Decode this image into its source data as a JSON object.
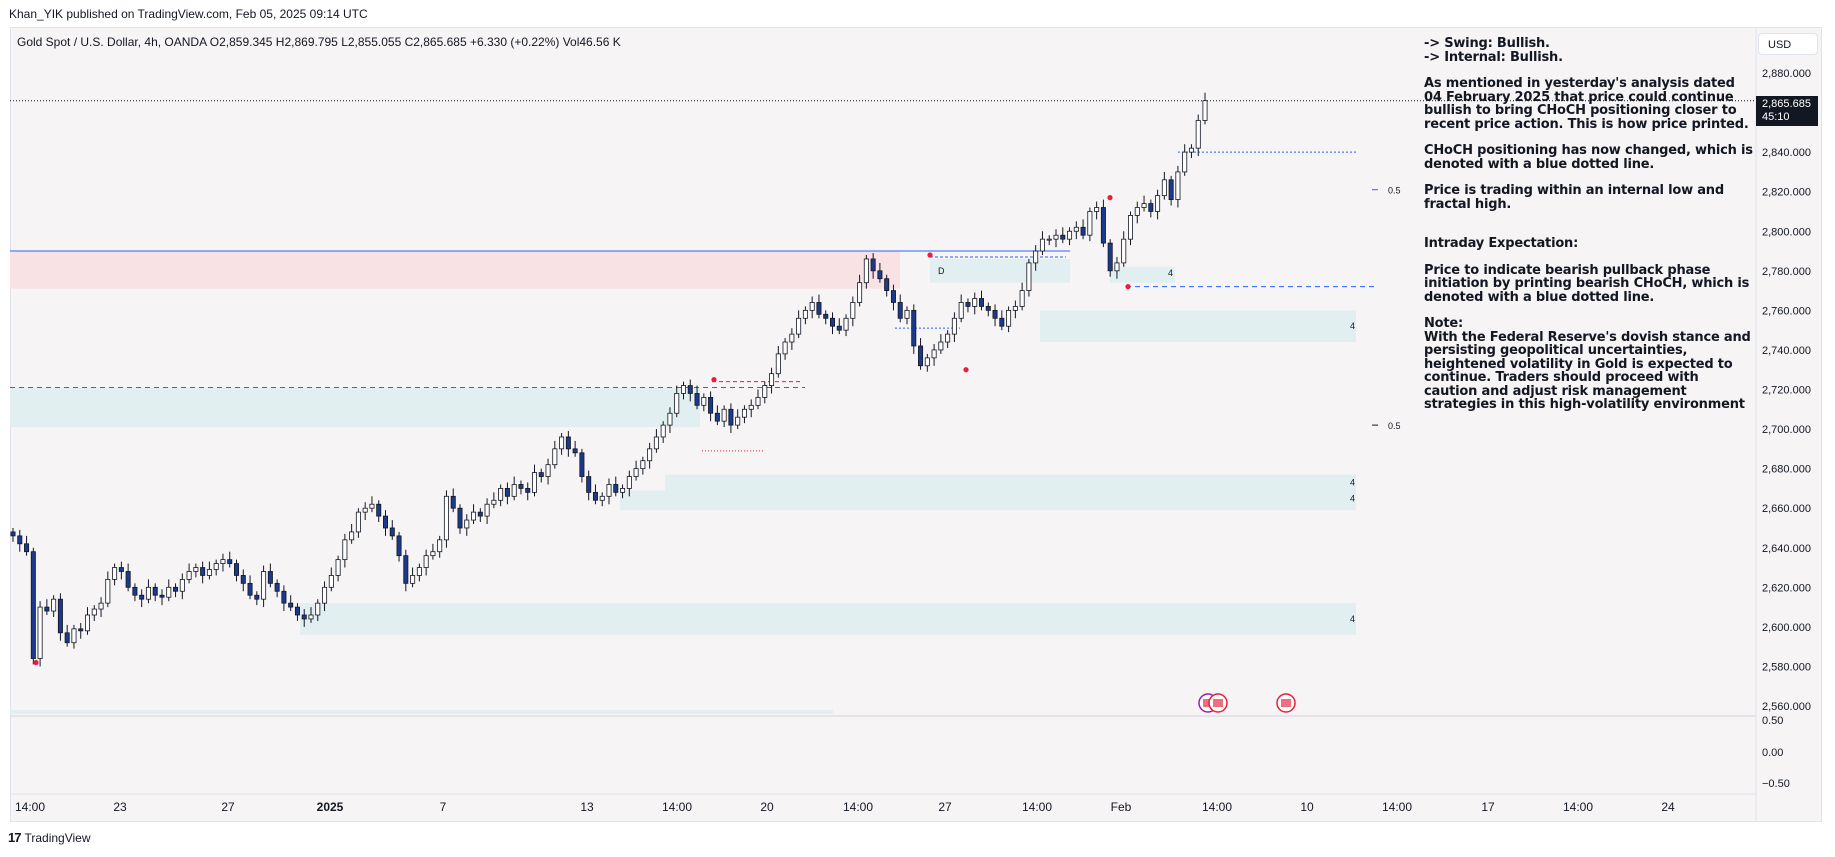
{
  "publisher_line": "Khan_YIK published on TradingView.com, Feb 05, 2025 09:14 UTC",
  "symbol_line": "Gold Spot / U.S. Dollar, 4h, OANDA  O2,859.345  H2,869.795  L2,855.055  C2,865.685  +6.330 (+0.22%)  Vol46.56 K",
  "currency_button": "USD",
  "last_price": "2,865.685",
  "countdown": "45:10",
  "footer_brand": "TradingView",
  "footer_logo": "17",
  "annotation": {
    "swing": "-> Swing:  Bullish.",
    "internal": "-> Internal:  Bullish.",
    "p1": "As mentioned in yesterday's analysis dated 04 February 2025 that price could continue bullish to bring CHoCH positioning closer to recent price action.  This is how price printed.",
    "p2": "CHoCH positioning has now changed, which is denoted with a blue dotted line.",
    "p3": "Price is trading within an internal low and fractal high.",
    "p4": "Intraday Expectation:",
    "p5": "Price to indicate bearish pullback phase initiation by printing bearish CHoCH, which is denoted with a blue dotted line.",
    "p6": "Note:",
    "p7": "With the Federal Reserve's dovish stance and persisting geopolitical uncertainties, heightened volatility in Gold is expected to continue. Traders should proceed with caution and adjust risk management strategies in this high-volatility environment"
  },
  "chart_labels": {
    "fib_upper": "0.5",
    "fib_lower": "0.5",
    "zone_label": "4",
    "d_label": "D"
  },
  "colors": {
    "bull_candle": "#ffffff",
    "bear_candle": "#1c3a8c",
    "wick": "#131722",
    "demand_zone": "#e1eff0",
    "supply_zone": "#f9e2e4",
    "choch_line": "#2962ff",
    "swing_point": "#e91e3c"
  },
  "chart_data": {
    "type": "candlestick",
    "title": "Gold Spot / U.S. Dollar, 4h, OANDA",
    "ylabel": "USD",
    "ylim": [
      2555,
      2890
    ],
    "yticks": [
      "2,880.000",
      "2,860.000",
      "2,840.000",
      "2,820.000",
      "2,800.000",
      "2,780.000",
      "2,760.000",
      "2,740.000",
      "2,720.000",
      "2,700.000",
      "2,680.000",
      "2,660.000",
      "2,640.000",
      "2,620.000",
      "2,600.000",
      "2,580.000",
      "2,560.000"
    ],
    "xticks": [
      "14:00",
      "23",
      "27",
      "2025",
      "7",
      "13",
      "14:00",
      "20",
      "14:00",
      "27",
      "14:00",
      "Feb",
      "14:00",
      "10",
      "14:00",
      "17",
      "14:00",
      "24"
    ],
    "sub_pane_yticks": [
      "0.50",
      "0.00",
      "−0.50"
    ],
    "ohlc": {
      "open": [
        2648,
        2646,
        2642,
        2638,
        2584,
        2610,
        2608,
        2614,
        2597,
        2592,
        2599,
        2598,
        2606,
        2609,
        2612,
        2624,
        2630,
        2628,
        2620,
        2616,
        2614,
        2620,
        2616,
        2615,
        2620,
        2618,
        2624,
        2628,
        2630,
        2626,
        2629,
        2632,
        2634,
        2632,
        2626,
        2622,
        2616,
        2614,
        2628,
        2622,
        2618,
        2612,
        2610,
        2606,
        2604,
        2606,
        2612,
        2620,
        2626,
        2634,
        2644,
        2648,
        2658,
        2660,
        2662,
        2656,
        2650,
        2646,
        2636,
        2622,
        2626,
        2630,
        2636,
        2638,
        2644,
        2666,
        2660,
        2650,
        2654,
        2658,
        2656,
        2662,
        2664,
        2670,
        2666,
        2672,
        2670,
        2668,
        2678,
        2676,
        2682,
        2690,
        2696,
        2690,
        2688,
        2676,
        2668,
        2664,
        2666,
        2672,
        2668,
        2670,
        2676,
        2680,
        2684,
        2690,
        2696,
        2702,
        2708,
        2718,
        2722,
        2718,
        2712,
        2716,
        2708,
        2704,
        2710,
        2702,
        2706,
        2710,
        2712,
        2716,
        2722,
        2728,
        2738,
        2744,
        2748,
        2756,
        2760,
        2764,
        2758,
        2756,
        2752,
        2750,
        2756,
        2764,
        2774,
        2786,
        2780,
        2776,
        2770,
        2764,
        2756,
        2760,
        2742,
        2732,
        2736,
        2740,
        2744,
        2748,
        2756,
        2764,
        2762,
        2766,
        2762,
        2760,
        2756,
        2752,
        2760,
        2762,
        2770,
        2784,
        2790,
        2796,
        2796,
        2798,
        2796,
        2800,
        2802,
        2798,
        2810,
        2812,
        2794,
        2780,
        2784,
        2796,
        2808,
        2812,
        2814,
        2810,
        2818,
        2826,
        2816,
        2830,
        2840,
        2842,
        2856
      ],
      "close": [
        2646,
        2642,
        2638,
        2584,
        2610,
        2608,
        2614,
        2597,
        2592,
        2599,
        2598,
        2606,
        2609,
        2612,
        2624,
        2630,
        2628,
        2620,
        2616,
        2614,
        2620,
        2616,
        2615,
        2620,
        2618,
        2624,
        2628,
        2630,
        2626,
        2629,
        2632,
        2634,
        2632,
        2626,
        2622,
        2616,
        2614,
        2628,
        2622,
        2618,
        2612,
        2610,
        2606,
        2604,
        2606,
        2612,
        2620,
        2626,
        2634,
        2644,
        2648,
        2658,
        2660,
        2662,
        2656,
        2650,
        2646,
        2636,
        2622,
        2626,
        2630,
        2636,
        2638,
        2644,
        2666,
        2660,
        2650,
        2654,
        2658,
        2656,
        2662,
        2664,
        2670,
        2666,
        2672,
        2670,
        2668,
        2678,
        2676,
        2682,
        2690,
        2696,
        2690,
        2688,
        2676,
        2668,
        2664,
        2666,
        2672,
        2668,
        2670,
        2676,
        2680,
        2684,
        2690,
        2696,
        2702,
        2708,
        2718,
        2722,
        2718,
        2712,
        2716,
        2708,
        2704,
        2710,
        2702,
        2706,
        2710,
        2712,
        2716,
        2722,
        2728,
        2738,
        2744,
        2748,
        2756,
        2760,
        2764,
        2758,
        2756,
        2752,
        2750,
        2756,
        2764,
        2774,
        2786,
        2780,
        2776,
        2770,
        2764,
        2756,
        2760,
        2742,
        2732,
        2736,
        2740,
        2744,
        2748,
        2756,
        2764,
        2762,
        2766,
        2762,
        2760,
        2756,
        2752,
        2760,
        2762,
        2770,
        2784,
        2790,
        2796,
        2796,
        2798,
        2796,
        2800,
        2802,
        2798,
        2810,
        2812,
        2794,
        2780,
        2784,
        2796,
        2808,
        2812,
        2814,
        2810,
        2818,
        2826,
        2816,
        2830,
        2840,
        2842,
        2856,
        2866
      ]
    }
  }
}
